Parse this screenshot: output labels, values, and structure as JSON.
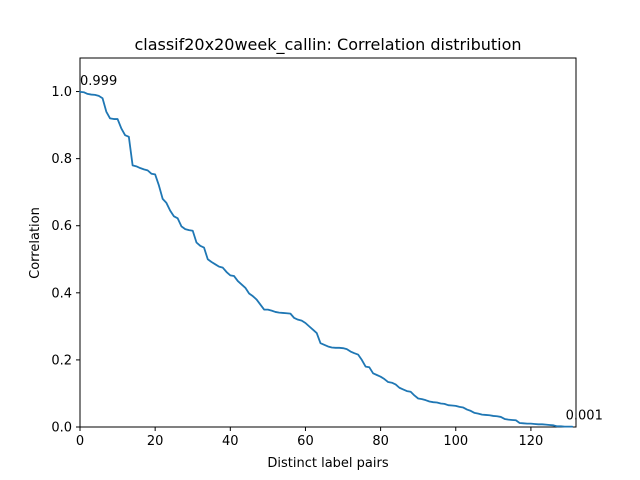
{
  "chart_data": {
    "type": "line",
    "title": "classif20x20week_callin: Correlation distribution",
    "xlabel": "Distinct label pairs",
    "ylabel": "Correlation",
    "xlim": [
      0,
      132
    ],
    "ylim": [
      0.0,
      1.1
    ],
    "xticks": [
      0,
      20,
      40,
      60,
      80,
      100,
      120
    ],
    "yticks": [
      0.0,
      0.2,
      0.4,
      0.6,
      0.8,
      1.0
    ],
    "xtick_labels": [
      "0",
      "20",
      "40",
      "60",
      "80",
      "100",
      "120"
    ],
    "ytick_labels": [
      "0.0",
      "0.2",
      "0.4",
      "0.6",
      "0.8",
      "1.0"
    ],
    "grid": false,
    "line_color": "#1f77b4",
    "annotations": [
      {
        "text": "0.999",
        "x": 0,
        "y": 0.999
      },
      {
        "text": "0.001",
        "x": 131,
        "y": 0.001
      }
    ],
    "x": [
      0,
      1,
      2,
      3,
      4,
      5,
      6,
      7,
      8,
      9,
      10,
      11,
      12,
      13,
      14,
      15,
      16,
      17,
      18,
      19,
      20,
      21,
      22,
      23,
      24,
      25,
      26,
      27,
      28,
      29,
      30,
      31,
      32,
      33,
      34,
      35,
      36,
      37,
      38,
      39,
      40,
      41,
      42,
      43,
      44,
      45,
      46,
      47,
      48,
      49,
      50,
      51,
      52,
      53,
      54,
      55,
      56,
      57,
      58,
      59,
      60,
      61,
      62,
      63,
      64,
      65,
      66,
      67,
      68,
      69,
      70,
      71,
      72,
      73,
      74,
      75,
      76,
      77,
      78,
      79,
      80,
      81,
      82,
      83,
      84,
      85,
      86,
      87,
      88,
      89,
      90,
      91,
      92,
      93,
      94,
      95,
      96,
      97,
      98,
      99,
      100,
      101,
      102,
      103,
      104,
      105,
      106,
      107,
      108,
      109,
      110,
      111,
      112,
      113,
      114,
      115,
      116,
      117,
      118,
      119,
      120,
      121,
      122,
      123,
      124,
      125,
      126,
      127,
      128,
      129,
      130,
      131
    ],
    "y": [
      0.999,
      0.998,
      0.993,
      0.991,
      0.99,
      0.987,
      0.98,
      0.94,
      0.92,
      0.918,
      0.918,
      0.89,
      0.87,
      0.865,
      0.78,
      0.777,
      0.772,
      0.768,
      0.765,
      0.755,
      0.753,
      0.72,
      0.68,
      0.668,
      0.645,
      0.628,
      0.622,
      0.598,
      0.59,
      0.587,
      0.585,
      0.55,
      0.54,
      0.535,
      0.5,
      0.492,
      0.485,
      0.478,
      0.475,
      0.462,
      0.452,
      0.45,
      0.435,
      0.425,
      0.415,
      0.398,
      0.39,
      0.38,
      0.365,
      0.35,
      0.35,
      0.347,
      0.343,
      0.341,
      0.34,
      0.339,
      0.338,
      0.325,
      0.32,
      0.317,
      0.31,
      0.3,
      0.29,
      0.28,
      0.25,
      0.245,
      0.24,
      0.237,
      0.236,
      0.236,
      0.235,
      0.232,
      0.225,
      0.22,
      0.216,
      0.2,
      0.18,
      0.178,
      0.16,
      0.155,
      0.15,
      0.143,
      0.134,
      0.132,
      0.127,
      0.117,
      0.112,
      0.107,
      0.105,
      0.094,
      0.085,
      0.083,
      0.08,
      0.076,
      0.074,
      0.073,
      0.07,
      0.069,
      0.065,
      0.064,
      0.063,
      0.06,
      0.058,
      0.052,
      0.048,
      0.042,
      0.04,
      0.037,
      0.036,
      0.035,
      0.033,
      0.032,
      0.03,
      0.024,
      0.022,
      0.021,
      0.02,
      0.012,
      0.011,
      0.01,
      0.01,
      0.009,
      0.008,
      0.008,
      0.007,
      0.006,
      0.005,
      0.002,
      0.002,
      0.001,
      0.001,
      0.001
    ]
  }
}
